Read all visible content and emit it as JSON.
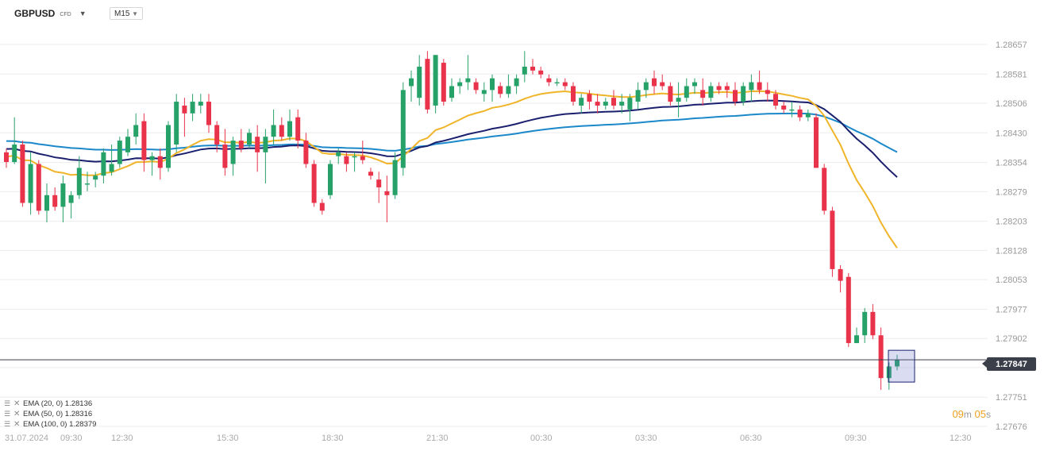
{
  "header": {
    "symbol": "GBPUSD",
    "instrument_type": "CFD",
    "timeframe": "M15"
  },
  "countdown": {
    "minutes": "09",
    "min_unit": "m",
    "seconds": "05",
    "sec_unit": "s"
  },
  "current_price": "1.27847",
  "legend": [
    {
      "label": "EMA (20, 0) 1.28136",
      "color": "#f0b429"
    },
    {
      "label": "EMA (50, 0) 1.28316",
      "color": "#1a1f6e"
    },
    {
      "label": "EMA (100, 0) 1.28379",
      "color": "#1a88c9"
    }
  ],
  "colors": {
    "up": "#26a269",
    "down": "#e8334a",
    "grid": "#ececec",
    "price_line": "#3a3f4a"
  },
  "chart_data": {
    "type": "candlestick",
    "y_ticks": [
      "1.28657",
      "1.28581",
      "1.28506",
      "1.28430",
      "1.28354",
      "1.28279",
      "1.28203",
      "1.28128",
      "1.28053",
      "1.27977",
      "1.27902",
      "1.27827",
      "1.27751",
      "1.27676"
    ],
    "ylim": [
      1.27676,
      1.28657
    ],
    "x_ticks": [
      "31.07.2024",
      "09:30",
      "12:30",
      "15:30",
      "18:30",
      "21:30",
      "00:30",
      "03:30",
      "06:30",
      "09:30",
      "12:30"
    ],
    "candles": [
      [
        1.2838,
        1.2839,
        1.2834,
        1.28355
      ],
      [
        1.28355,
        1.2847,
        1.2835,
        1.284
      ],
      [
        1.284,
        1.2841,
        1.2824,
        1.2825
      ],
      [
        1.2825,
        1.2838,
        1.2822,
        1.2835
      ],
      [
        1.2835,
        1.2836,
        1.2822,
        1.2823
      ],
      [
        1.2823,
        1.283,
        1.282,
        1.2827
      ],
      [
        1.2827,
        1.2829,
        1.2823,
        1.2824
      ],
      [
        1.2824,
        1.2832,
        1.282,
        1.283
      ],
      [
        1.2825,
        1.2828,
        1.2821,
        1.2827
      ],
      [
        1.2827,
        1.2837,
        1.2826,
        1.2834
      ],
      [
        1.283,
        1.2833,
        1.2828,
        1.283
      ],
      [
        1.2831,
        1.2833,
        1.2829,
        1.2832
      ],
      [
        1.2832,
        1.2839,
        1.283,
        1.2838
      ],
      [
        1.2833,
        1.284,
        1.2832,
        1.2835
      ],
      [
        1.2835,
        1.2842,
        1.2834,
        1.2841
      ],
      [
        1.2838,
        1.2844,
        1.2837,
        1.2842
      ],
      [
        1.2842,
        1.2848,
        1.284,
        1.2845
      ],
      [
        1.2846,
        1.2848,
        1.2833,
        1.2836
      ],
      [
        1.2836,
        1.2838,
        1.2832,
        1.2837
      ],
      [
        1.2837,
        1.2839,
        1.2831,
        1.2834
      ],
      [
        1.2834,
        1.2846,
        1.2833,
        1.2845
      ],
      [
        1.284,
        1.2853,
        1.2838,
        1.2851
      ],
      [
        1.285,
        1.2852,
        1.2842,
        1.2848
      ],
      [
        1.2848,
        1.2853,
        1.2846,
        1.2851
      ],
      [
        1.285,
        1.2853,
        1.2848,
        1.2851
      ],
      [
        1.2851,
        1.2853,
        1.2843,
        1.2845
      ],
      [
        1.2845,
        1.2846,
        1.2838,
        1.284
      ],
      [
        1.284,
        1.2844,
        1.2832,
        1.2834
      ],
      [
        1.2835,
        1.2842,
        1.2832,
        1.2841
      ],
      [
        1.2841,
        1.2844,
        1.2838,
        1.2839
      ],
      [
        1.284,
        1.2844,
        1.2839,
        1.2843
      ],
      [
        1.2842,
        1.2845,
        1.2833,
        1.2838
      ],
      [
        1.2838,
        1.2844,
        1.283,
        1.2842
      ],
      [
        1.2842,
        1.2849,
        1.284,
        1.2845
      ],
      [
        1.2845,
        1.2847,
        1.2841,
        1.2842
      ],
      [
        1.2842,
        1.2849,
        1.2841,
        1.2846
      ],
      [
        1.2847,
        1.2849,
        1.2839,
        1.2841
      ],
      [
        1.2841,
        1.2843,
        1.2834,
        1.2835
      ],
      [
        1.2835,
        1.2836,
        1.2824,
        1.2825
      ],
      [
        1.2825,
        1.2826,
        1.2822,
        1.2823
      ],
      [
        1.2827,
        1.2836,
        1.2826,
        1.2835
      ],
      [
        1.2837,
        1.2839,
        1.2835,
        1.2838
      ],
      [
        1.2837,
        1.2838,
        1.2833,
        1.2835
      ],
      [
        1.2837,
        1.2838,
        1.2833,
        1.2837
      ],
      [
        1.2837,
        1.2841,
        1.2835,
        1.2836
      ],
      [
        1.2833,
        1.2834,
        1.2831,
        1.2832
      ],
      [
        1.2831,
        1.2833,
        1.2825,
        1.2829
      ],
      [
        1.2828,
        1.2832,
        1.282,
        1.2827
      ],
      [
        1.2827,
        1.2838,
        1.2826,
        1.2836
      ],
      [
        1.2834,
        1.2856,
        1.2832,
        1.2854
      ],
      [
        1.2855,
        1.2859,
        1.2851,
        1.2857
      ],
      [
        1.2852,
        1.2863,
        1.285,
        1.286
      ],
      [
        1.2862,
        1.2864,
        1.2848,
        1.2849
      ],
      [
        1.285,
        1.2863,
        1.2848,
        1.2863
      ],
      [
        1.2861,
        1.2862,
        1.285,
        1.2851
      ],
      [
        1.2852,
        1.2857,
        1.2851,
        1.2855
      ],
      [
        1.2855,
        1.2857,
        1.2853,
        1.2856
      ],
      [
        1.2856,
        1.2863,
        1.2854,
        1.2857
      ],
      [
        1.2856,
        1.2857,
        1.2853,
        1.2854
      ],
      [
        1.2853,
        1.2856,
        1.2851,
        1.2854
      ],
      [
        1.2854,
        1.2858,
        1.2851,
        1.2857
      ],
      [
        1.2855,
        1.2856,
        1.2852,
        1.2853
      ],
      [
        1.2853,
        1.2858,
        1.2852,
        1.2855
      ],
      [
        1.2855,
        1.2858,
        1.2853,
        1.2857
      ],
      [
        1.2858,
        1.2864,
        1.2856,
        1.286
      ],
      [
        1.286,
        1.2862,
        1.2858,
        1.2859
      ],
      [
        1.2859,
        1.286,
        1.2857,
        1.2858
      ],
      [
        1.2857,
        1.2858,
        1.2855,
        1.2856
      ],
      [
        1.2856,
        1.2857,
        1.2855,
        1.2856
      ],
      [
        1.2856,
        1.2857,
        1.2854,
        1.2855
      ],
      [
        1.2855,
        1.2856,
        1.285,
        1.2851
      ],
      [
        1.285,
        1.2853,
        1.2848,
        1.2852
      ],
      [
        1.2853,
        1.2854,
        1.2849,
        1.2851
      ],
      [
        1.2851,
        1.2853,
        1.2848,
        1.285
      ],
      [
        1.285,
        1.2852,
        1.2849,
        1.2851
      ],
      [
        1.2852,
        1.2854,
        1.2849,
        1.285
      ],
      [
        1.285,
        1.2853,
        1.2848,
        1.2851
      ],
      [
        1.2849,
        1.2853,
        1.2846,
        1.2852
      ],
      [
        1.2851,
        1.2856,
        1.2849,
        1.2854
      ],
      [
        1.2854,
        1.2857,
        1.2852,
        1.2856
      ],
      [
        1.2857,
        1.2859,
        1.2853,
        1.2855
      ],
      [
        1.2856,
        1.2858,
        1.2854,
        1.2855
      ],
      [
        1.2855,
        1.2856,
        1.285,
        1.2851
      ],
      [
        1.2851,
        1.2856,
        1.2847,
        1.2852
      ],
      [
        1.2852,
        1.2857,
        1.2851,
        1.2855
      ],
      [
        1.2855,
        1.2857,
        1.2853,
        1.2856
      ],
      [
        1.2854,
        1.2857,
        1.285,
        1.2852
      ],
      [
        1.2852,
        1.2856,
        1.2851,
        1.2855
      ],
      [
        1.2855,
        1.2856,
        1.2853,
        1.2854
      ],
      [
        1.2855,
        1.2856,
        1.2852,
        1.2854
      ],
      [
        1.2854,
        1.2856,
        1.285,
        1.2851
      ],
      [
        1.2851,
        1.2856,
        1.285,
        1.2855
      ],
      [
        1.2854,
        1.2858,
        1.2851,
        1.2856
      ],
      [
        1.2856,
        1.2859,
        1.2853,
        1.2854
      ],
      [
        1.2854,
        1.2856,
        1.2851,
        1.2853
      ],
      [
        1.2853,
        1.2854,
        1.2849,
        1.285
      ],
      [
        1.285,
        1.2851,
        1.2848,
        1.2849
      ],
      [
        1.2849,
        1.2851,
        1.2847,
        1.2849
      ],
      [
        1.2849,
        1.285,
        1.2846,
        1.2847
      ],
      [
        1.2847,
        1.2849,
        1.2846,
        1.2848
      ],
      [
        1.2847,
        1.2848,
        1.2834,
        1.2834
      ],
      [
        1.2834,
        1.2835,
        1.2822,
        1.2823
      ],
      [
        1.2823,
        1.2824,
        1.2806,
        1.2808
      ],
      [
        1.2808,
        1.2809,
        1.2802,
        1.2805
      ],
      [
        1.2806,
        1.2807,
        1.2788,
        1.2789
      ],
      [
        1.2789,
        1.2793,
        1.2789,
        1.2791
      ],
      [
        1.2791,
        1.2798,
        1.2789,
        1.2797
      ],
      [
        1.2797,
        1.2799,
        1.279,
        1.2791
      ],
      [
        1.2791,
        1.2793,
        1.2777,
        1.278
      ],
      [
        1.278,
        1.2784,
        1.2777,
        1.2783
      ],
      [
        1.2783,
        1.2786,
        1.2782,
        1.27847
      ]
    ]
  }
}
